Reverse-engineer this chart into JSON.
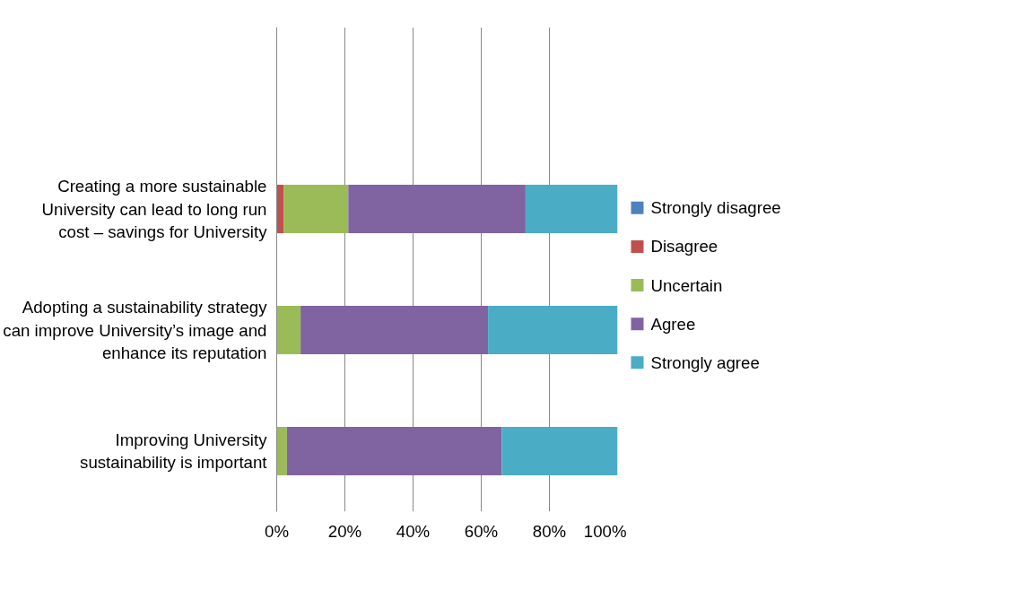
{
  "chart_data": {
    "type": "bar",
    "orientation": "horizontal",
    "stacked": true,
    "categories": [
      null,
      "Creating a more sustainable University can lead to long run cost – savings for University",
      "Adopting a sustainability strategy can improve University’s image and enhance its reputation",
      "Improving University sustainability is important"
    ],
    "series": [
      {
        "name": "Strongly disagree",
        "color": "#4f81bd",
        "values": [
          null,
          0,
          0,
          0
        ]
      },
      {
        "name": "Disagree",
        "color": "#c0504d",
        "values": [
          null,
          2,
          0,
          0
        ]
      },
      {
        "name": "Uncertain",
        "color": "#9bbb59",
        "values": [
          null,
          19,
          7,
          3
        ]
      },
      {
        "name": "Agree",
        "color": "#8064a2",
        "values": [
          null,
          52,
          55,
          63
        ]
      },
      {
        "name": "Strongly agree",
        "color": "#4bacc6",
        "values": [
          null,
          27,
          38,
          34
        ]
      }
    ],
    "xlim": [
      0,
      100
    ],
    "xticks": [
      {
        "value": 0,
        "label": "0%"
      },
      {
        "value": 20,
        "label": "20%"
      },
      {
        "value": 40,
        "label": "40%"
      },
      {
        "value": 60,
        "label": "60%"
      },
      {
        "value": 80,
        "label": "80%"
      },
      {
        "value": 100,
        "label": "100%"
      }
    ],
    "grid": "x",
    "legend": "right"
  }
}
